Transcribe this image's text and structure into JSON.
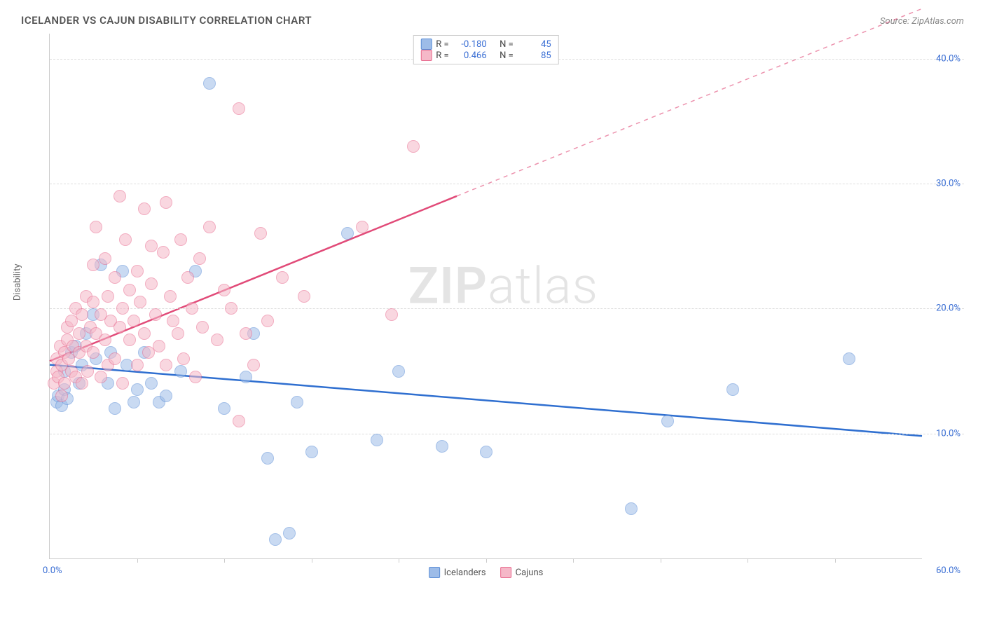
{
  "title": "ICELANDER VS CAJUN DISABILITY CORRELATION CHART",
  "source": "Source: ZipAtlas.com",
  "y_axis_label": "Disability",
  "watermark_zip": "ZIP",
  "watermark_atlas": "atlas",
  "chart": {
    "type": "scatter",
    "xlim": [
      0,
      60
    ],
    "ylim": [
      0,
      42
    ],
    "x_origin_label": "0.0%",
    "x_max_label": "60.0%",
    "x_ticks": [
      6,
      12,
      18,
      24,
      30,
      36,
      42,
      48,
      54
    ],
    "y_ticks": [
      {
        "v": 10,
        "label": "10.0%"
      },
      {
        "v": 20,
        "label": "20.0%"
      },
      {
        "v": 30,
        "label": "30.0%"
      },
      {
        "v": 40,
        "label": "40.0%"
      }
    ],
    "background_color": "#ffffff",
    "grid_color": "#dddddd",
    "marker_radius": 9,
    "marker_opacity": 0.55,
    "series": [
      {
        "name": "Icelanders",
        "fill": "#9dbce8",
        "stroke": "#5a8dd6",
        "trend_color": "#2f6fd0",
        "trend": {
          "x1": 0,
          "y1": 15.5,
          "x2": 60,
          "y2": 9.8,
          "dash": false
        },
        "R": "-0.180",
        "N": "45",
        "points": [
          [
            0.5,
            12.5
          ],
          [
            0.6,
            13.0
          ],
          [
            0.8,
            12.2
          ],
          [
            1.0,
            13.5
          ],
          [
            1.2,
            12.8
          ],
          [
            1.0,
            15.0
          ],
          [
            1.5,
            16.5
          ],
          [
            1.8,
            17.0
          ],
          [
            2.0,
            14.0
          ],
          [
            2.2,
            15.5
          ],
          [
            2.5,
            18.0
          ],
          [
            3.0,
            19.5
          ],
          [
            3.2,
            16.0
          ],
          [
            3.5,
            23.5
          ],
          [
            4.0,
            14.0
          ],
          [
            4.2,
            16.5
          ],
          [
            4.5,
            12.0
          ],
          [
            5.0,
            23.0
          ],
          [
            5.3,
            15.5
          ],
          [
            5.8,
            12.5
          ],
          [
            6.0,
            13.5
          ],
          [
            6.5,
            16.5
          ],
          [
            7.0,
            14.0
          ],
          [
            7.5,
            12.5
          ],
          [
            8.0,
            13.0
          ],
          [
            9.0,
            15.0
          ],
          [
            10.0,
            23.0
          ],
          [
            11.0,
            38.0
          ],
          [
            12.0,
            12.0
          ],
          [
            13.5,
            14.5
          ],
          [
            14.0,
            18.0
          ],
          [
            15.0,
            8.0
          ],
          [
            15.5,
            1.5
          ],
          [
            16.5,
            2.0
          ],
          [
            17.0,
            12.5
          ],
          [
            18.0,
            8.5
          ],
          [
            20.5,
            26.0
          ],
          [
            22.5,
            9.5
          ],
          [
            24.0,
            15.0
          ],
          [
            27.0,
            9.0
          ],
          [
            30.0,
            8.5
          ],
          [
            40.0,
            4.0
          ],
          [
            42.5,
            11.0
          ],
          [
            47.0,
            13.5
          ],
          [
            55.0,
            16.0
          ]
        ]
      },
      {
        "name": "Cajuns",
        "fill": "#f5b8c8",
        "stroke": "#e86a8e",
        "trend_color": "#e14a78",
        "trend": {
          "x1": 0,
          "y1": 15.8,
          "x2": 28,
          "y2": 29.0,
          "dash_extend_x": 60,
          "dash_extend_y": 44
        },
        "R": "0.466",
        "N": "85",
        "points": [
          [
            0.3,
            14.0
          ],
          [
            0.5,
            15.0
          ],
          [
            0.5,
            16.0
          ],
          [
            0.6,
            14.5
          ],
          [
            0.7,
            17.0
          ],
          [
            0.8,
            15.5
          ],
          [
            0.8,
            13.0
          ],
          [
            1.0,
            16.5
          ],
          [
            1.0,
            14.0
          ],
          [
            1.2,
            17.5
          ],
          [
            1.2,
            18.5
          ],
          [
            1.3,
            16.0
          ],
          [
            1.5,
            19.0
          ],
          [
            1.5,
            15.0
          ],
          [
            1.6,
            17.0
          ],
          [
            1.8,
            14.5
          ],
          [
            1.8,
            20.0
          ],
          [
            2.0,
            16.5
          ],
          [
            2.0,
            18.0
          ],
          [
            2.2,
            19.5
          ],
          [
            2.2,
            14.0
          ],
          [
            2.5,
            21.0
          ],
          [
            2.5,
            17.0
          ],
          [
            2.6,
            15.0
          ],
          [
            2.8,
            18.5
          ],
          [
            3.0,
            20.5
          ],
          [
            3.0,
            16.5
          ],
          [
            3.0,
            23.5
          ],
          [
            3.2,
            18.0
          ],
          [
            3.2,
            26.5
          ],
          [
            3.5,
            14.5
          ],
          [
            3.5,
            19.5
          ],
          [
            3.8,
            17.5
          ],
          [
            3.8,
            24.0
          ],
          [
            4.0,
            21.0
          ],
          [
            4.0,
            15.5
          ],
          [
            4.2,
            19.0
          ],
          [
            4.5,
            16.0
          ],
          [
            4.5,
            22.5
          ],
          [
            4.8,
            18.5
          ],
          [
            4.8,
            29.0
          ],
          [
            5.0,
            20.0
          ],
          [
            5.0,
            14.0
          ],
          [
            5.2,
            25.5
          ],
          [
            5.5,
            17.5
          ],
          [
            5.5,
            21.5
          ],
          [
            5.8,
            19.0
          ],
          [
            6.0,
            15.5
          ],
          [
            6.0,
            23.0
          ],
          [
            6.2,
            20.5
          ],
          [
            6.5,
            18.0
          ],
          [
            6.5,
            28.0
          ],
          [
            6.8,
            16.5
          ],
          [
            7.0,
            22.0
          ],
          [
            7.0,
            25.0
          ],
          [
            7.3,
            19.5
          ],
          [
            7.5,
            17.0
          ],
          [
            7.8,
            24.5
          ],
          [
            8.0,
            15.5
          ],
          [
            8.0,
            28.5
          ],
          [
            8.3,
            21.0
          ],
          [
            8.5,
            19.0
          ],
          [
            8.8,
            18.0
          ],
          [
            9.0,
            25.5
          ],
          [
            9.2,
            16.0
          ],
          [
            9.5,
            22.5
          ],
          [
            9.8,
            20.0
          ],
          [
            10.0,
            14.5
          ],
          [
            10.3,
            24.0
          ],
          [
            10.5,
            18.5
          ],
          [
            11.0,
            26.5
          ],
          [
            11.5,
            17.5
          ],
          [
            12.0,
            21.5
          ],
          [
            12.5,
            20.0
          ],
          [
            13.0,
            36.0
          ],
          [
            13.5,
            18.0
          ],
          [
            14.0,
            15.5
          ],
          [
            14.5,
            26.0
          ],
          [
            15.0,
            19.0
          ],
          [
            16.0,
            22.5
          ],
          [
            17.5,
            21.0
          ],
          [
            21.5,
            26.5
          ],
          [
            23.5,
            19.5
          ],
          [
            25.0,
            33.0
          ],
          [
            13.0,
            11.0
          ]
        ]
      }
    ]
  },
  "legend_stats": {
    "R_label": "R =",
    "N_label": "N ="
  },
  "legend_bottom": [
    {
      "label": "Icelanders"
    },
    {
      "label": "Cajuns"
    }
  ]
}
